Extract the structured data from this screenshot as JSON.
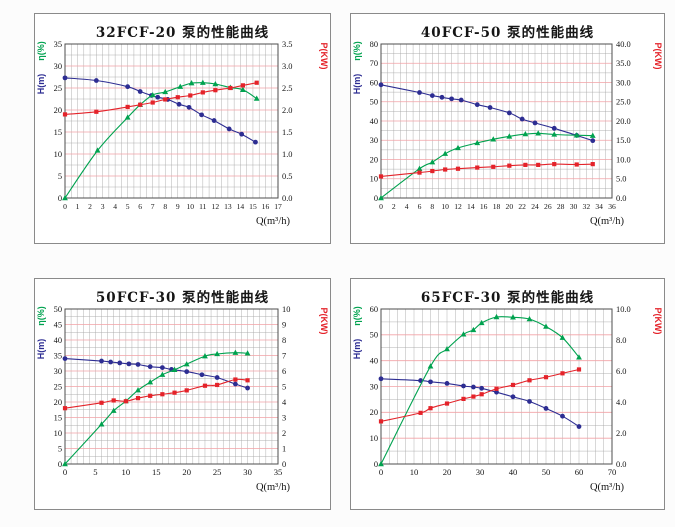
{
  "page": {
    "background": "#fcfcfc"
  },
  "chart_data": [
    {
      "type": "line",
      "title": "32FCF-20 泵的性能曲线",
      "xlabel": "Q(m³/h)",
      "left_axis": {
        "min": 0,
        "max": 35,
        "tick_step": 5,
        "decimals": 0,
        "labels": [
          {
            "text": "η(%)",
            "color": "#00a24f",
            "name": "eta-axis-label"
          },
          {
            "text": "H(m)",
            "color": "#2d2d92",
            "name": "head-axis-label"
          }
        ]
      },
      "right_axis": {
        "label": "P(KW)",
        "color": "#e4232a",
        "min": 0,
        "max": 3.5,
        "tick_step": 0.5,
        "decimals": 1
      },
      "x_axis": {
        "min": 0,
        "max": 17,
        "label_step": 1,
        "grid_step": 0.5
      },
      "grid": {
        "minor_step": 2.5,
        "major_step": 5,
        "minor_color": "#a8a8a8",
        "major_color": "#f2a2a6"
      },
      "series": [
        {
          "name": "head-H",
          "axis": "left",
          "color": "#2d2d92",
          "marker": "circle",
          "x": [
            0,
            2.5,
            5,
            6,
            6.9,
            7.4,
            8.2,
            9.1,
            9.9,
            10.9,
            11.9,
            13.1,
            14.1,
            15.2
          ],
          "y": [
            27.3,
            26.7,
            25.3,
            24.2,
            23.3,
            22.9,
            22.4,
            21.3,
            20.6,
            18.9,
            17.6,
            15.7,
            14.5,
            12.7
          ]
        },
        {
          "name": "efficiency-eta",
          "axis": "left",
          "color": "#00a24f",
          "marker": "triangle",
          "x": [
            0,
            2.6,
            5,
            6,
            7,
            8,
            9.2,
            10.1,
            11,
            12,
            13.2,
            14.2,
            15.3
          ],
          "y": [
            0,
            10.8,
            18.3,
            21.2,
            23.4,
            24.1,
            25.3,
            26.1,
            26.2,
            25.9,
            25.1,
            24.6,
            22.6
          ]
        },
        {
          "name": "power-P",
          "axis": "right",
          "color": "#e4232a",
          "marker": "square",
          "x": [
            0,
            2.5,
            5,
            6,
            7,
            8,
            9,
            10,
            11,
            12,
            13.2,
            14.2,
            15.3
          ],
          "y": [
            1.9,
            1.96,
            2.07,
            2.12,
            2.17,
            2.24,
            2.29,
            2.33,
            2.4,
            2.45,
            2.5,
            2.56,
            2.62
          ]
        }
      ]
    },
    {
      "type": "line",
      "title": "40FCF-50 泵的性能曲线",
      "xlabel": "Q(m³/h)",
      "left_axis": {
        "min": 0,
        "max": 80,
        "tick_step": 10,
        "decimals": 0,
        "labels": [
          {
            "text": "η(%)",
            "color": "#00a24f",
            "name": "eta-axis-label"
          },
          {
            "text": "H(m)",
            "color": "#2d2d92",
            "name": "head-axis-label"
          }
        ]
      },
      "right_axis": {
        "label": "P(KW)",
        "color": "#e4232a",
        "min": 0,
        "max": 40,
        "tick_step": 5,
        "decimals": 1
      },
      "x_axis": {
        "min": 0,
        "max": 36,
        "label_step": 2,
        "grid_step": 1
      },
      "grid": {
        "minor_step": 5,
        "major_step": 10,
        "minor_color": "#a8a8a8",
        "major_color": "#f2a2a6"
      },
      "series": [
        {
          "name": "head-H",
          "axis": "left",
          "color": "#2d2d92",
          "marker": "circle",
          "x": [
            0,
            6,
            8,
            9.5,
            11,
            12.5,
            15,
            17,
            20,
            22,
            24,
            27,
            30.5,
            33
          ],
          "y": [
            58.8,
            54.8,
            53.2,
            52.3,
            51.5,
            50.9,
            48.5,
            47.0,
            44.2,
            41.0,
            39.0,
            36.2,
            32.5,
            29.8
          ]
        },
        {
          "name": "efficiency-eta",
          "axis": "left",
          "color": "#00a24f",
          "marker": "triangle",
          "x": [
            0,
            6,
            8,
            10,
            12,
            15,
            17.5,
            20,
            22.5,
            24.5,
            27,
            30.5,
            33
          ],
          "y": [
            0,
            15.2,
            18.6,
            23.0,
            26.0,
            28.6,
            30.5,
            32.0,
            33.2,
            33.6,
            33.0,
            32.6,
            32.4
          ]
        },
        {
          "name": "power-P",
          "axis": "right",
          "color": "#e4232a",
          "marker": "square",
          "x": [
            0,
            6,
            8,
            10,
            12,
            15,
            17.5,
            20,
            22.5,
            24.5,
            27,
            30.5,
            33
          ],
          "y": [
            5.6,
            6.6,
            7.0,
            7.4,
            7.6,
            7.9,
            8.1,
            8.4,
            8.6,
            8.6,
            8.8,
            8.7,
            8.8
          ]
        }
      ]
    },
    {
      "type": "line",
      "title": "50FCF-30 泵的性能曲线",
      "xlabel": "Q(m³/h)",
      "left_axis": {
        "min": 0,
        "max": 50,
        "tick_step": 5,
        "decimals": 0,
        "labels": [
          {
            "text": "η(%)",
            "color": "#00a24f",
            "name": "eta-axis-label"
          },
          {
            "text": "H(m)",
            "color": "#2d2d92",
            "name": "head-axis-label"
          }
        ]
      },
      "right_axis": {
        "label": "P(KW)",
        "color": "#e4232a",
        "min": 0,
        "max": 10,
        "tick_step": 1,
        "decimals": 0
      },
      "x_axis": {
        "min": 0,
        "max": 35,
        "label_step": 5,
        "grid_step": 1
      },
      "grid": {
        "minor_step": 2.5,
        "major_step": 5,
        "minor_color": "#a8a8a8",
        "major_color": "#f2a2a6"
      },
      "series": [
        {
          "name": "head-H",
          "axis": "left",
          "color": "#2d2d92",
          "marker": "circle",
          "x": [
            0,
            6,
            7.5,
            9,
            10.5,
            12,
            14,
            16,
            17.5,
            20,
            22.5,
            25,
            28,
            30
          ],
          "y": [
            34.0,
            33.2,
            32.9,
            32.6,
            32.3,
            32.1,
            31.4,
            31.1,
            30.5,
            29.8,
            28.8,
            27.9,
            25.8,
            24.5
          ]
        },
        {
          "name": "efficiency-eta",
          "axis": "left",
          "color": "#00a24f",
          "marker": "triangle",
          "x": [
            0,
            6,
            8,
            10,
            12,
            14,
            16,
            18,
            20,
            23,
            25,
            28,
            30
          ],
          "y": [
            0,
            12.8,
            17.2,
            20.3,
            23.8,
            26.4,
            28.8,
            30.4,
            32.2,
            34.8,
            35.5,
            35.9,
            35.7
          ]
        },
        {
          "name": "power-P",
          "axis": "right",
          "color": "#e4232a",
          "marker": "square",
          "x": [
            0,
            6,
            8,
            10,
            12,
            14,
            16,
            18,
            20,
            23,
            25,
            28,
            30
          ],
          "y": [
            3.6,
            3.95,
            4.1,
            4.05,
            4.25,
            4.4,
            4.5,
            4.6,
            4.75,
            5.05,
            5.1,
            5.45,
            5.4
          ]
        }
      ]
    },
    {
      "type": "line",
      "title": "65FCF-30 泵的性能曲线",
      "xlabel": "Q(m³/h)",
      "left_axis": {
        "min": 0,
        "max": 60,
        "tick_step": 10,
        "decimals": 0,
        "labels": [
          {
            "text": "η(%)",
            "color": "#00a24f",
            "name": "eta-axis-label"
          },
          {
            "text": "H(m)",
            "color": "#2d2d92",
            "name": "head-axis-label"
          }
        ]
      },
      "right_axis": {
        "label": "P(KW)",
        "color": "#e4232a",
        "min": 0,
        "max": 10,
        "tick_step": 2,
        "decimals": 1
      },
      "x_axis": {
        "min": 0,
        "max": 70,
        "label_step": 10,
        "grid_step": 2.5
      },
      "grid": {
        "minor_step": 5,
        "major_step": 10,
        "minor_color": "#a8a8a8",
        "major_color": "#f2a2a6"
      },
      "series": [
        {
          "name": "head-H",
          "axis": "left",
          "color": "#2d2d92",
          "marker": "circle",
          "x": [
            0,
            12,
            15,
            20,
            25,
            28,
            30.5,
            35,
            40,
            45,
            50,
            55,
            60
          ],
          "y": [
            33.0,
            32.3,
            31.8,
            31.2,
            30.2,
            29.8,
            29.3,
            27.8,
            26.0,
            24.2,
            21.5,
            18.5,
            14.5
          ]
        },
        {
          "name": "efficiency-eta",
          "axis": "left",
          "color": "#00a24f",
          "marker": "triangle",
          "x": [
            0,
            15,
            20,
            25,
            28,
            30.5,
            35,
            40,
            45,
            50,
            55,
            60
          ],
          "y": [
            0,
            37.8,
            44.5,
            50.2,
            51.9,
            54.6,
            56.9,
            56.8,
            56.1,
            53.2,
            48.9,
            41.3
          ]
        },
        {
          "name": "power-P",
          "axis": "right",
          "color": "#e4232a",
          "marker": "square",
          "x": [
            0,
            12,
            15,
            20,
            25,
            28,
            30.5,
            35,
            40,
            45,
            50,
            55,
            60
          ],
          "y": [
            2.75,
            3.3,
            3.6,
            3.9,
            4.2,
            4.35,
            4.5,
            4.85,
            5.1,
            5.4,
            5.6,
            5.85,
            6.1
          ]
        }
      ]
    }
  ]
}
